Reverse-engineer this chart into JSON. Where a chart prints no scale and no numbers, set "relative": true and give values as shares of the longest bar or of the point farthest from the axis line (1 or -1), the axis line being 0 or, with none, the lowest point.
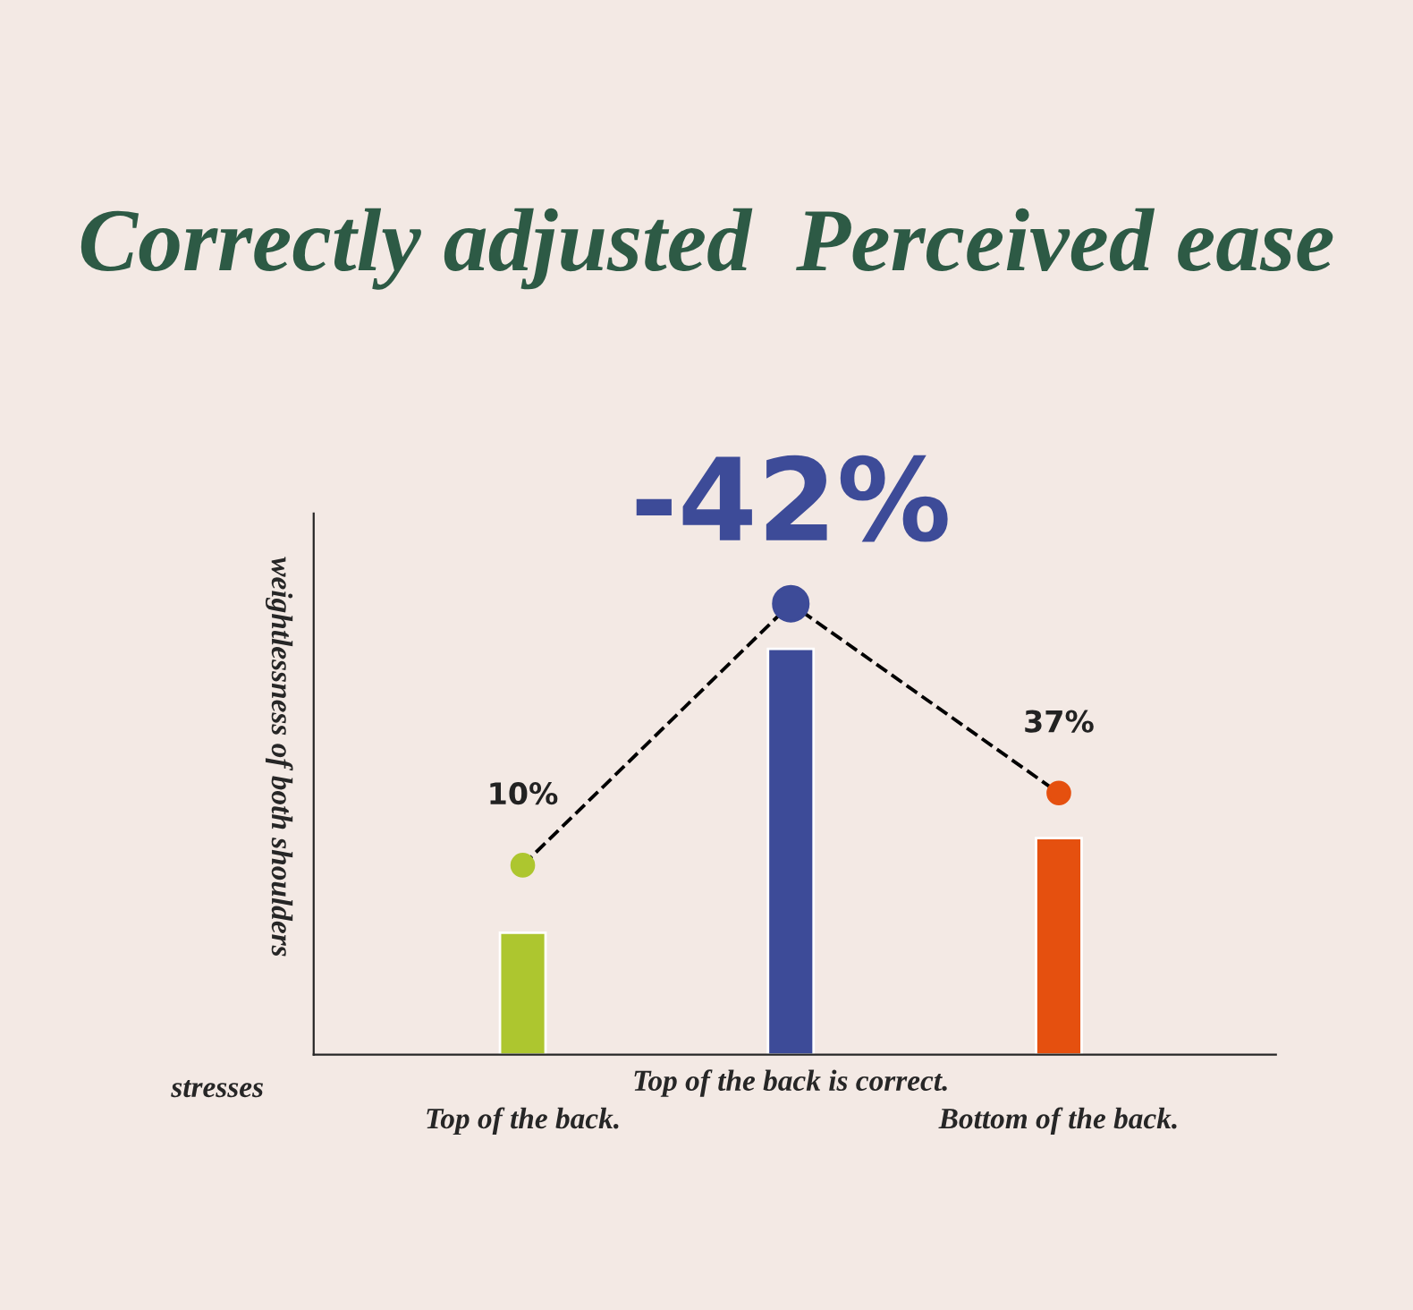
{
  "chart_data": {
    "type": "bar",
    "title": "Correctly adjusted  Perceived ease",
    "xlabel": "stresses",
    "ylabel": "weightlessness of both shoulders",
    "categories": [
      "Top of the back.",
      "Top of the back is correct.",
      "Bottom of the back."
    ],
    "relative": true,
    "grid": false,
    "legend": false,
    "series": [
      {
        "colors": [
          "#adc62f",
          "#3d4b98",
          "#e5500f"
        ],
        "values": [
          0.27,
          0.9,
          0.48
        ]
      },
      {
        "type": "line",
        "line_style": "dashed",
        "marker": "circle",
        "colors": [
          "#adc62f",
          "#3d4b98",
          "#e5500f"
        ],
        "values": [
          0.42,
          1,
          0.58
        ]
      }
    ],
    "annotations": [
      {
        "text": "10%",
        "x": "Top of the back.",
        "y": 0.42
      },
      {
        "text": "-42%",
        "x": "Top of the back is correct.",
        "y": 1
      },
      {
        "text": "37%",
        "x": "Bottom of the back.",
        "y": 0.58
      }
    ]
  }
}
